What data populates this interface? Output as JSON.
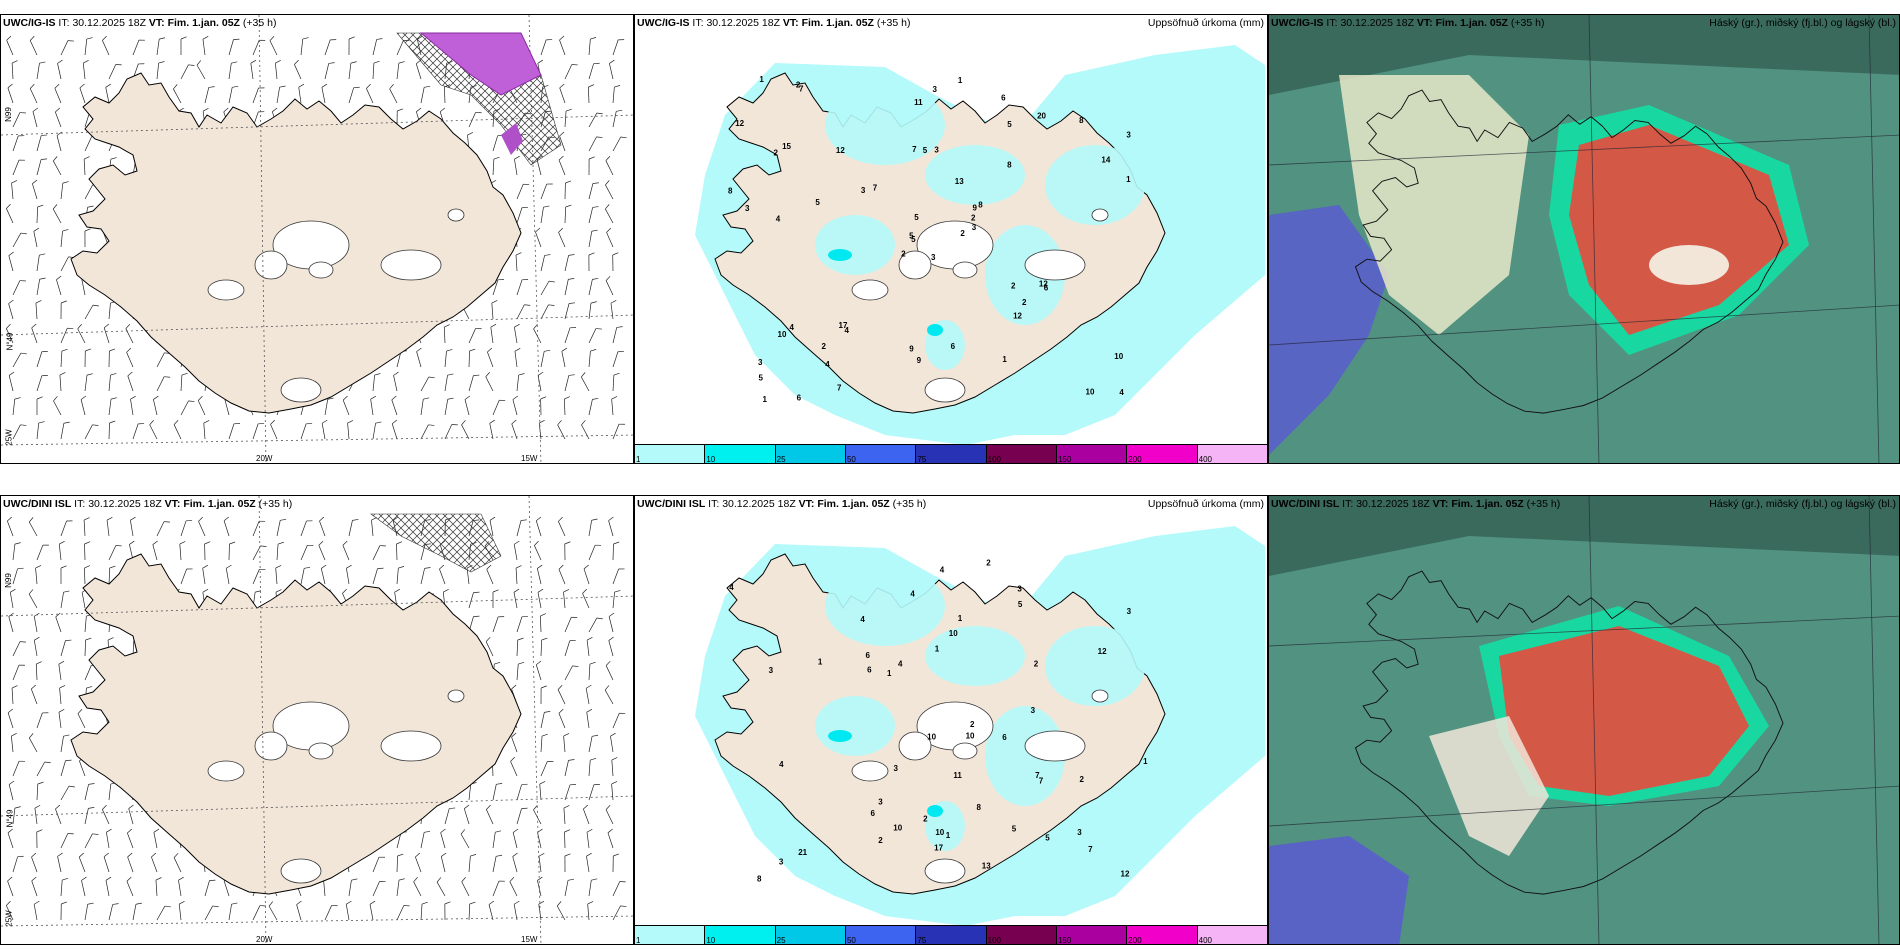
{
  "top_row": {
    "model": "UWC/IG-IS",
    "it_label": "IT:",
    "it_value": "30.12.2025 18Z",
    "vt_label": "VT: Fim. 1.jan. 05Z",
    "offset": "(+35 h)"
  },
  "bottom_row": {
    "model": "UWC/DINI ISL",
    "it_label": "IT:",
    "it_value": "30.12.2025 18Z",
    "vt_label": "VT: Fim. 1.jan. 05Z",
    "offset": "(+35 h)"
  },
  "precip_title": "Uppsöfnuð úrkoma (mm)",
  "cloud_title": "Háský (gr.), miðský (fj.bl.) og lágský (bl.)",
  "axis": {
    "lat66": "66°N",
    "lat64": "64°N",
    "lat65_top": "N99",
    "lat64_top": "N°49",
    "lon20": "20W",
    "lon15": "15W",
    "lon25": "25W"
  },
  "legend": [
    {
      "label": "1",
      "color": "#b4fafa"
    },
    {
      "label": "10",
      "color": "#00f0f0"
    },
    {
      "label": "25",
      "color": "#00c8e6"
    },
    {
      "label": "50",
      "color": "#3c64f0"
    },
    {
      "label": "75",
      "color": "#2832b4"
    },
    {
      "label": "100",
      "color": "#780050"
    },
    {
      "label": "150",
      "color": "#aa00a0"
    },
    {
      "label": "200",
      "color": "#f000c8"
    },
    {
      "label": "400",
      "color": "#f5b4f5"
    }
  ],
  "precip_top_values": [
    "3",
    "2",
    "5",
    "3",
    "9",
    "4",
    "6",
    "3",
    "5",
    "2",
    "7",
    "4",
    "4",
    "3",
    "2",
    "8",
    "6",
    "7",
    "13",
    "4",
    "7",
    "5",
    "4",
    "5",
    "8",
    "6",
    "15",
    "11",
    "3",
    "2",
    "1",
    "5",
    "9",
    "5",
    "12",
    "20",
    "17",
    "10",
    "10",
    "12",
    "1",
    "3",
    "5",
    "12",
    "7",
    "8",
    "2",
    "1",
    "9",
    "3",
    "10",
    "14",
    "12",
    "2",
    "1",
    "2",
    "2",
    "1",
    "6",
    "8",
    "3"
  ],
  "precip_bottom_values": [
    "3",
    "2",
    "2",
    "11",
    "4",
    "2",
    "3",
    "3",
    "5",
    "6",
    "12",
    "6",
    "10",
    "4",
    "5",
    "6",
    "7",
    "4",
    "10",
    "3",
    "4",
    "21",
    "17",
    "6",
    "7",
    "5",
    "4",
    "10",
    "12",
    "8",
    "7",
    "3",
    "1",
    "8",
    "10",
    "13",
    "10",
    "2",
    "3",
    "2",
    "1",
    "3",
    "4",
    "2",
    "3",
    "1",
    "1",
    "1",
    "1"
  ],
  "colors": {
    "land": "#f2e6d9",
    "ice": "#ffffff",
    "precip_light": "#b4fafa",
    "precip_cyan": "#00e8f0",
    "cloud_dark": "#3a6a5c",
    "cloud_mid": "#5aa08c",
    "cloud_bright": "#19d7a0",
    "cloud_red": "#e84a3c",
    "cloud_blue": "#5a5ad2"
  }
}
